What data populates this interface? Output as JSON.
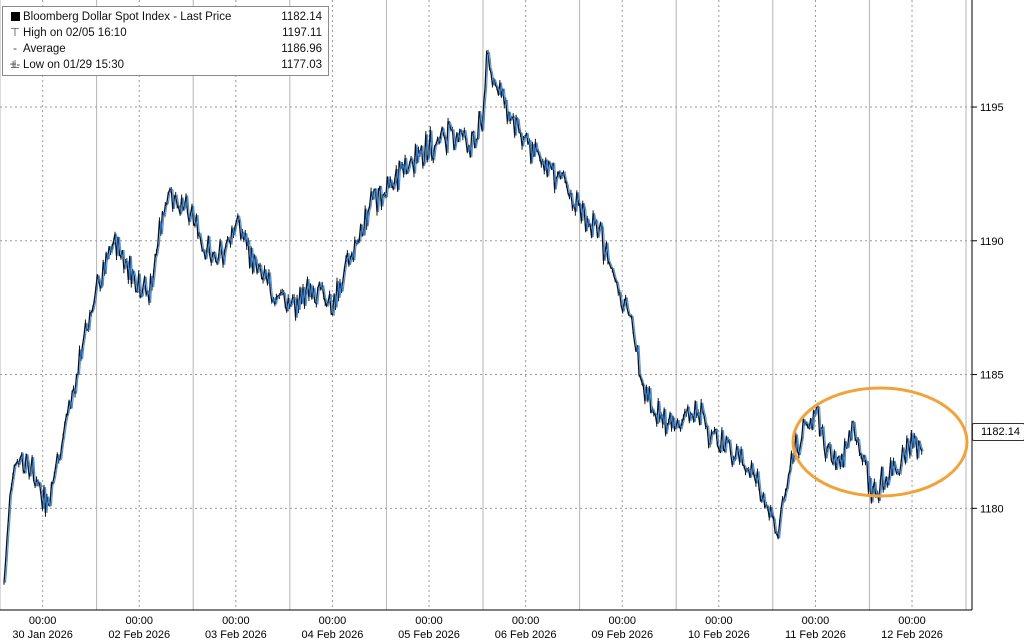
{
  "legend": {
    "title": "Bloomberg Dollar Spot Index - Last Price",
    "last_value": "1182.14",
    "high_label": "High on 02/05 16:10",
    "high_value": "1197.11",
    "avg_label": "Average",
    "avg_value": "1186.96",
    "low_label": "Low on 01/29 15:30",
    "low_value": "1177.03"
  },
  "last_price_tag": "1182.14",
  "colors": {
    "line_main": "#111111",
    "line_highlight": "#2f7fd6",
    "grid": "#9a9a9a",
    "circle": "#f2a23a",
    "axis": "#000000"
  },
  "chart_data": {
    "type": "line",
    "title": "Bloomberg Dollar Spot Index - Last Price",
    "xlabel": "",
    "ylabel": "",
    "ylim": [
      1176.2,
      1199.0
    ],
    "yticks": [
      1180,
      1185,
      1190,
      1195
    ],
    "ytick_labels": [
      "1180",
      "1185",
      "1190",
      "1195"
    ],
    "grid": true,
    "legend_position": "top-left",
    "x_time_labels": [
      "00:00",
      "00:00",
      "00:00",
      "00:00",
      "00:00",
      "00:00",
      "00:00",
      "00:00",
      "00:00",
      "00:00"
    ],
    "x_date_labels": [
      "30 Jan 2026",
      "02 Feb 2026",
      "03 Feb 2026",
      "04 Feb 2026",
      "05 Feb 2026",
      "06 Feb 2026",
      "09 Feb 2026",
      "10 Feb 2026",
      "11 Feb 2026",
      "12 Feb 2026"
    ],
    "series": [
      {
        "name": "Bloomberg Dollar Spot Index - Last Price",
        "day_positions": [
          0,
          0.08,
          0.18,
          0.3,
          0.45,
          0.6,
          0.75,
          0.9,
          1.0,
          1.15,
          1.3,
          1.5,
          1.7,
          1.9,
          2.0,
          2.2,
          2.4,
          2.6,
          2.8,
          3.0,
          3.2,
          3.4,
          3.6,
          3.8,
          4.0,
          4.2,
          4.4,
          4.6,
          4.75,
          4.85,
          4.95,
          5.0,
          5.2,
          5.4,
          5.6,
          5.8,
          6.0,
          6.15,
          6.3,
          6.45,
          6.6,
          6.75,
          6.9,
          7.0,
          7.2,
          7.4,
          7.6,
          7.8,
          8.0,
          8.2,
          8.4,
          8.6,
          8.8,
          9.0,
          9.2,
          9.4,
          9.5
        ],
        "values": [
          1177.2,
          1181.5,
          1182.0,
          1181.3,
          1180.2,
          1182.5,
          1185.0,
          1187.5,
          1188.5,
          1190.0,
          1189.0,
          1188.0,
          1192.0,
          1191.0,
          1190.5,
          1189.0,
          1190.8,
          1189.0,
          1188.0,
          1187.5,
          1188.3,
          1187.5,
          1189.5,
          1191.5,
          1192.0,
          1193.0,
          1193.5,
          1194.0,
          1194.0,
          1193.5,
          1194.5,
          1196.8,
          1195.0,
          1193.5,
          1193.0,
          1192.0,
          1191.0,
          1190.3,
          1189.0,
          1187.5,
          1185.0,
          1183.5,
          1183.0,
          1183.3,
          1183.5,
          1182.5,
          1182.0,
          1181.0,
          1179.0,
          1182.5,
          1183.5,
          1181.5,
          1183.0,
          1180.5,
          1181.5,
          1182.5,
          1182.14
        ]
      }
    ],
    "annotations": [
      "orange ellipse around recent range, 11–12 Feb 2026"
    ]
  }
}
